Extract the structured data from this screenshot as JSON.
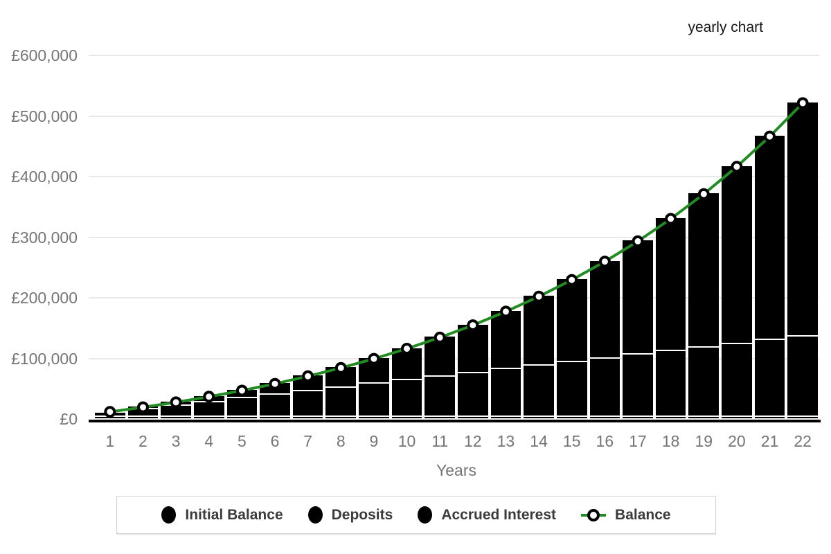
{
  "title": "yearly chart",
  "colors": {
    "bar": "#000000",
    "line": "#228B22",
    "marker_fill": "#ffffff",
    "marker_stroke": "#000000",
    "grid": "#e8e8e8",
    "axis_text": "#757575",
    "title_text": "#151515",
    "legend_text": "#3b3b3b",
    "legend_border": "#d2d2d2",
    "axis_line": "#000000"
  },
  "y_axis": {
    "ticks": [
      {
        "label": "£600,000",
        "value": 600000
      },
      {
        "label": "£500,000",
        "value": 500000
      },
      {
        "label": "£400,000",
        "value": 400000
      },
      {
        "label": "£300,000",
        "value": 300000
      },
      {
        "label": "£200,000",
        "value": 200000
      },
      {
        "label": "£100,000",
        "value": 100000
      },
      {
        "label": "£0",
        "value": 0
      }
    ]
  },
  "legend": {
    "items": [
      {
        "label": "Initial Balance",
        "marker": "circle"
      },
      {
        "label": "Deposits",
        "marker": "circle"
      },
      {
        "label": "Accrued Interest",
        "marker": "circle"
      },
      {
        "label": "Balance",
        "marker": "line-circle"
      }
    ]
  },
  "chart_data": {
    "type": "bar",
    "stacked": true,
    "title": "yearly chart",
    "xlabel": "Years",
    "ylabel": "",
    "ylim": [
      0,
      600000
    ],
    "grid": true,
    "legend_position": "bottom",
    "categories": [
      "1",
      "2",
      "3",
      "4",
      "5",
      "6",
      "7",
      "8",
      "9",
      "10",
      "11",
      "12",
      "13",
      "14",
      "15",
      "16",
      "17",
      "18",
      "19",
      "20",
      "21",
      "22"
    ],
    "series": [
      {
        "name": "Initial Balance",
        "values": [
          5000,
          5000,
          5000,
          5000,
          5000,
          5000,
          5000,
          5000,
          5000,
          5000,
          5000,
          5000,
          5000,
          5000,
          5000,
          5000,
          5000,
          5000,
          5000,
          5000,
          5000,
          5000
        ]
      },
      {
        "name": "Deposits",
        "values": [
          6000,
          12000,
          18000,
          24000,
          30000,
          36000,
          42000,
          48000,
          54000,
          60000,
          66000,
          72000,
          78000,
          84000,
          90000,
          96000,
          102000,
          108000,
          114000,
          120000,
          126000,
          132000
        ]
      },
      {
        "name": "Accrued Interest",
        "values": [
          800,
          2300,
          4600,
          7800,
          11900,
          17100,
          23500,
          31200,
          40300,
          51000,
          63400,
          77700,
          94200,
          113100,
          134500,
          158800,
          186300,
          217300,
          252200,
          291300,
          335200,
          384300
        ]
      }
    ],
    "line_series": {
      "name": "Balance",
      "values": [
        11800,
        19300,
        27600,
        36800,
        46900,
        58100,
        70500,
        84200,
        99300,
        116000,
        134400,
        154700,
        177200,
        202100,
        229500,
        259800,
        293300,
        330300,
        371200,
        416300,
        466200,
        521300
      ]
    }
  }
}
